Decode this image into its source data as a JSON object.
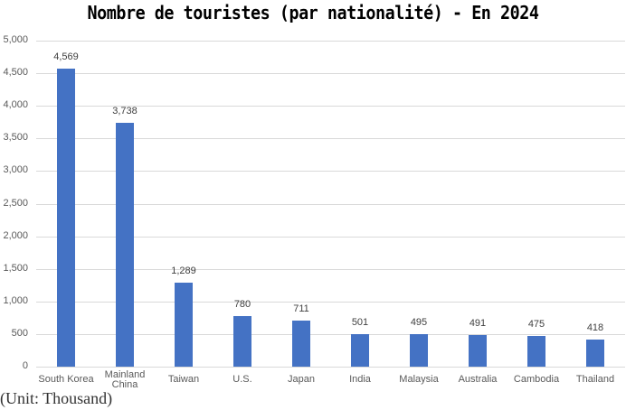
{
  "chart_data": {
    "type": "bar",
    "title": "Nombre de touristes (par nationalité) - En 2024",
    "xlabel": "",
    "ylabel": "",
    "unit_note": "(Unit: Thousand)",
    "categories": [
      "South Korea",
      "Mainland China",
      "Taiwan",
      "U.S.",
      "Japan",
      "India",
      "Malaysia",
      "Australia",
      "Cambodia",
      "Thailand"
    ],
    "category_lines": [
      [
        "South Korea"
      ],
      [
        "Mainland",
        "China"
      ],
      [
        "Taiwan"
      ],
      [
        "U.S."
      ],
      [
        "Japan"
      ],
      [
        "India"
      ],
      [
        "Malaysia"
      ],
      [
        "Australia"
      ],
      [
        "Cambodia"
      ],
      [
        "Thailand"
      ]
    ],
    "values": [
      4569,
      3738,
      1289,
      780,
      711,
      501,
      495,
      491,
      475,
      418
    ],
    "value_labels": [
      "4,569",
      "3,738",
      "1,289",
      "780",
      "711",
      "501",
      "495",
      "491",
      "475",
      "418"
    ],
    "ylim": [
      0,
      5000
    ],
    "yticks": [
      0,
      500,
      1000,
      1500,
      2000,
      2500,
      3000,
      3500,
      4000,
      4500,
      5000
    ],
    "ytick_labels": [
      "0",
      "500",
      "1,000",
      "1,500",
      "2,000",
      "2,500",
      "3,000",
      "3,500",
      "4,000",
      "4,500",
      "5,000"
    ],
    "grid": true,
    "legend": "none",
    "bar_color": "#4472c4"
  }
}
